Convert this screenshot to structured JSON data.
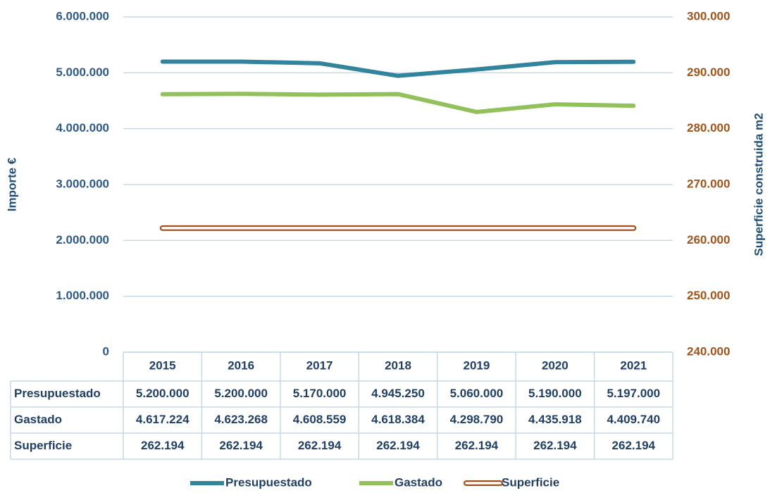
{
  "chart_data": {
    "type": "line",
    "categories": [
      "2015",
      "2016",
      "2017",
      "2018",
      "2019",
      "2020",
      "2021"
    ],
    "series": [
      {
        "name": "Presupuestado",
        "color": "#31849b",
        "values": [
          5200000,
          5200000,
          5170000,
          4945250,
          5060000,
          5190000,
          5197000
        ],
        "value_labels": [
          "5.200.000",
          "5.200.000",
          "5.170.000",
          "4.945.250",
          "5.060.000",
          "5.190.000",
          "5.197.000"
        ]
      },
      {
        "name": "Gastado",
        "color": "#92c05a",
        "values": [
          4617224,
          4623268,
          4608559,
          4618384,
          4298790,
          4435918,
          4409740
        ],
        "value_labels": [
          "4.617.224",
          "4.623.268",
          "4.608.559",
          "4.618.384",
          "4.298.790",
          "4.435.918",
          "4.409.740"
        ]
      },
      {
        "name": "Superficie",
        "color": "#a0521e",
        "axis": "y2",
        "values": [
          262194,
          262194,
          262194,
          262194,
          262194,
          262194,
          262194
        ],
        "value_labels": [
          "262.194",
          "262.194",
          "262.194",
          "262.194",
          "262.194",
          "262.194",
          "262.194"
        ]
      }
    ],
    "ylabel": "Importe €",
    "y2label": "Superficie construida m2",
    "ylim": [
      0,
      6000000
    ],
    "yticks": [
      0,
      {
        "value": 1000000,
        "label": "1.000.000"
      },
      {
        "value": 2000000,
        "label": "2.000.000"
      },
      {
        "value": 3000000,
        "label": "3.000.000"
      },
      {
        "value": 4000000,
        "label": "4.000.000"
      },
      {
        "value": 5000000,
        "label": "5.000.000"
      },
      {
        "value": 6000000,
        "label": "6.000.000"
      }
    ],
    "y2lim": [
      240000,
      300000
    ],
    "y2ticks": [
      {
        "value": 240000,
        "label": "240.000"
      },
      {
        "value": 250000,
        "label": "250.000"
      },
      {
        "value": 260000,
        "label": "260.000"
      },
      {
        "value": 270000,
        "label": "270.000"
      },
      {
        "value": 280000,
        "label": "280.000"
      },
      {
        "value": 290000,
        "label": "290.000"
      },
      {
        "value": 300000,
        "label": "300.000"
      }
    ],
    "grid": true,
    "legend": "bottom"
  }
}
